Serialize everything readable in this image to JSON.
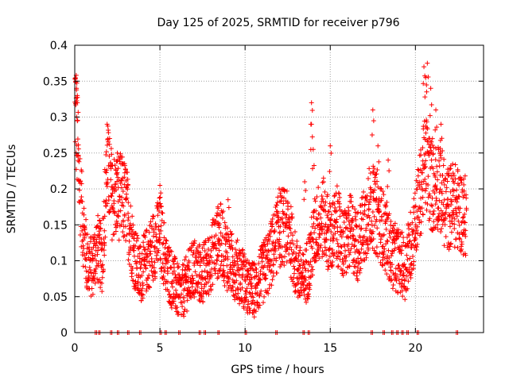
{
  "chart_data": {
    "type": "scatter",
    "title": "Day 125 of 2025, SRMTID for receiver p796",
    "xlabel": "GPS time / hours",
    "ylabel": "SRMTID / TECUs",
    "xlim": [
      0,
      24
    ],
    "ylim": [
      0,
      0.4
    ],
    "x_ticks": [
      "0",
      "5",
      "10",
      "15",
      "20"
    ],
    "x_tick_values": [
      0,
      5,
      10,
      15,
      20
    ],
    "y_ticks": [
      "0",
      "0.05",
      "0.1",
      "0.15",
      "0.2",
      "0.25",
      "0.3",
      "0.35",
      "0.4"
    ],
    "y_tick_values": [
      0,
      0.05,
      0.1,
      0.15,
      0.2,
      0.25,
      0.3,
      0.35,
      0.4
    ],
    "grid": true,
    "marker": "+",
    "color": "#ff0000",
    "trend": [
      [
        0.0,
        0.33
      ],
      [
        0.2,
        0.24
      ],
      [
        0.4,
        0.17
      ],
      [
        0.7,
        0.1
      ],
      [
        1.0,
        0.09
      ],
      [
        1.3,
        0.12
      ],
      [
        1.6,
        0.1
      ],
      [
        1.9,
        0.23
      ],
      [
        2.2,
        0.19
      ],
      [
        2.6,
        0.19
      ],
      [
        3.0,
        0.18
      ],
      [
        3.4,
        0.12
      ],
      [
        3.8,
        0.08
      ],
      [
        4.2,
        0.1
      ],
      [
        4.6,
        0.12
      ],
      [
        5.0,
        0.14
      ],
      [
        5.4,
        0.09
      ],
      [
        5.8,
        0.07
      ],
      [
        6.2,
        0.05
      ],
      [
        6.6,
        0.07
      ],
      [
        7.0,
        0.09
      ],
      [
        7.4,
        0.08
      ],
      [
        7.8,
        0.09
      ],
      [
        8.2,
        0.12
      ],
      [
        8.6,
        0.13
      ],
      [
        9.0,
        0.1
      ],
      [
        9.4,
        0.09
      ],
      [
        9.8,
        0.08
      ],
      [
        10.2,
        0.06
      ],
      [
        10.6,
        0.06
      ],
      [
        11.0,
        0.08
      ],
      [
        11.4,
        0.1
      ],
      [
        11.8,
        0.13
      ],
      [
        12.2,
        0.15
      ],
      [
        12.6,
        0.14
      ],
      [
        13.0,
        0.09
      ],
      [
        13.4,
        0.07
      ],
      [
        13.8,
        0.1
      ],
      [
        14.2,
        0.15
      ],
      [
        14.6,
        0.16
      ],
      [
        15.0,
        0.13
      ],
      [
        15.4,
        0.15
      ],
      [
        15.8,
        0.12
      ],
      [
        16.2,
        0.14
      ],
      [
        16.6,
        0.12
      ],
      [
        17.0,
        0.15
      ],
      [
        17.4,
        0.18
      ],
      [
        17.8,
        0.16
      ],
      [
        18.2,
        0.14
      ],
      [
        18.6,
        0.11
      ],
      [
        19.0,
        0.1
      ],
      [
        19.4,
        0.09
      ],
      [
        19.8,
        0.13
      ],
      [
        20.2,
        0.18
      ],
      [
        20.6,
        0.24
      ],
      [
        21.0,
        0.2
      ],
      [
        21.4,
        0.21
      ],
      [
        21.8,
        0.17
      ],
      [
        22.2,
        0.18
      ],
      [
        22.6,
        0.17
      ],
      [
        23.0,
        0.16
      ]
    ],
    "spikes": [
      [
        0.05,
        0.35
      ],
      [
        0.1,
        0.34
      ],
      [
        0.15,
        0.33
      ],
      [
        1.9,
        0.29
      ],
      [
        2.5,
        0.25
      ],
      [
        5.0,
        0.205
      ],
      [
        8.4,
        0.175
      ],
      [
        9.0,
        0.185
      ],
      [
        12.0,
        0.2
      ],
      [
        13.5,
        0.21
      ],
      [
        13.9,
        0.32
      ],
      [
        13.9,
        0.29
      ],
      [
        14.0,
        0.255
      ],
      [
        15.0,
        0.26
      ],
      [
        17.5,
        0.31
      ],
      [
        17.8,
        0.26
      ],
      [
        20.5,
        0.37
      ],
      [
        20.7,
        0.375
      ],
      [
        20.6,
        0.355
      ],
      [
        20.9,
        0.34
      ],
      [
        21.2,
        0.31
      ],
      [
        21.5,
        0.29
      ],
      [
        21.0,
        0.27
      ],
      [
        18.4,
        0.24
      ]
    ],
    "zero_hours": [
      1.2,
      1.4,
      2.1,
      2.5,
      3.1,
      3.8,
      5.0,
      5.3,
      6.1,
      7.3,
      7.6,
      8.4,
      10.0,
      11.8,
      13.4,
      13.7,
      17.4,
      18.1,
      18.6,
      18.9,
      19.2,
      19.5,
      20.1,
      22.4
    ]
  }
}
